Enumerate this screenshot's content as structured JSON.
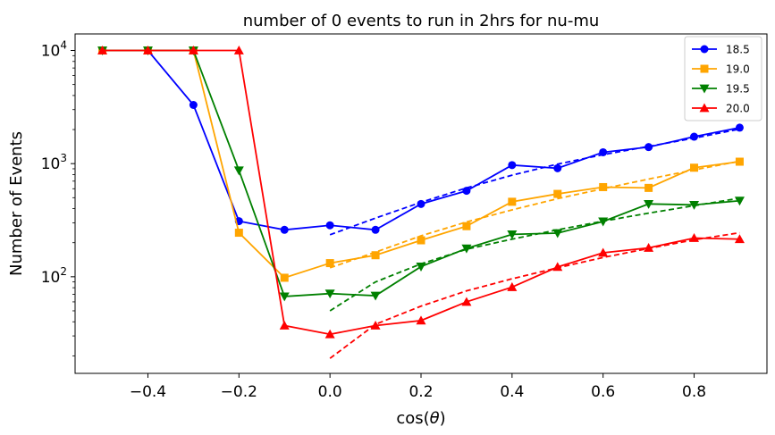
{
  "chart_data": {
    "type": "line",
    "title": "number of 0 events to run in 2hrs for nu-mu",
    "xlabel": "cos(θ)",
    "ylabel": "Number of Events",
    "xlim": [
      -0.56,
      0.96
    ],
    "ylim": [
      14,
      14000
    ],
    "yscale": "log",
    "xticks": [
      -0.4,
      -0.2,
      0.0,
      0.2,
      0.4,
      0.6,
      0.8
    ],
    "xtick_labels": [
      "−0.4",
      "−0.2",
      "0.0",
      "0.2",
      "0.4",
      "0.6",
      "0.8"
    ],
    "yticks": [
      {
        "value": 100,
        "base": "10",
        "exp": "2"
      },
      {
        "value": 1000,
        "base": "10",
        "exp": "3"
      },
      {
        "value": 10000,
        "base": "10",
        "exp": "4"
      }
    ],
    "legend_position": "upper-right",
    "grid": false,
    "series": [
      {
        "name": "18.5",
        "color": "#0000ff",
        "marker": "circle",
        "x": [
          -0.5,
          -0.4,
          -0.3,
          -0.2,
          -0.1,
          0.0,
          0.1,
          0.2,
          0.3,
          0.4,
          0.5,
          0.6,
          0.7,
          0.8,
          0.9
        ],
        "y": [
          10000,
          10000,
          3300,
          310,
          260,
          285,
          260,
          440,
          575,
          970,
          910,
          1260,
          1400,
          1730,
          2080
        ],
        "fit": {
          "x": [
            0.0,
            0.1,
            0.2,
            0.3,
            0.4,
            0.5,
            0.6,
            0.7,
            0.8,
            0.9
          ],
          "y": [
            235,
            330,
            455,
            610,
            790,
            990,
            1200,
            1420,
            1680,
            2020
          ]
        }
      },
      {
        "name": "19.0",
        "color": "#ffa500",
        "marker": "square",
        "x": [
          -0.5,
          -0.4,
          -0.3,
          -0.2,
          -0.1,
          0.0,
          0.1,
          0.2,
          0.3,
          0.4,
          0.5,
          0.6,
          0.7,
          0.8,
          0.9
        ],
        "y": [
          10000,
          10000,
          10000,
          245,
          98,
          132,
          155,
          210,
          280,
          460,
          540,
          620,
          610,
          920,
          1040
        ],
        "fit": {
          "x": [
            0.0,
            0.1,
            0.2,
            0.3,
            0.4,
            0.5,
            0.6,
            0.7,
            0.8,
            0.9
          ],
          "y": [
            120,
            165,
            230,
            305,
            390,
            490,
            600,
            730,
            880,
            1050
          ]
        }
      },
      {
        "name": "19.5",
        "color": "#008000",
        "marker": "triangle-down",
        "x": [
          -0.5,
          -0.4,
          -0.3,
          -0.2,
          -0.1,
          0.0,
          0.1,
          0.2,
          0.3,
          0.4,
          0.5,
          0.6,
          0.7,
          0.8,
          0.9
        ],
        "y": [
          10000,
          10000,
          10000,
          870,
          67,
          71,
          68,
          123,
          178,
          237,
          243,
          308,
          440,
          432,
          470
        ],
        "fit": {
          "x": [
            0.0,
            0.1,
            0.2,
            0.3,
            0.4,
            0.5,
            0.6,
            0.7,
            0.8,
            0.9
          ],
          "y": [
            50,
            90,
            130,
            175,
            215,
            260,
            310,
            365,
            425,
            495
          ]
        }
      },
      {
        "name": "20.0",
        "color": "#ff0000",
        "marker": "triangle-up",
        "x": [
          -0.5,
          -0.4,
          -0.3,
          -0.2,
          -0.1,
          0.0,
          0.1,
          0.2,
          0.3,
          0.4,
          0.5,
          0.6,
          0.7,
          0.8,
          0.9
        ],
        "y": [
          10000,
          10000,
          10000,
          10000,
          37,
          31,
          37,
          41,
          60,
          81,
          122,
          163,
          180,
          220,
          215
        ],
        "fit": {
          "x": [
            0.0,
            0.1,
            0.2,
            0.3,
            0.4,
            0.5,
            0.6,
            0.7,
            0.8,
            0.9
          ],
          "y": [
            19,
            38,
            55,
            75,
            96,
            120,
            148,
            178,
            212,
            245
          ]
        }
      }
    ]
  }
}
